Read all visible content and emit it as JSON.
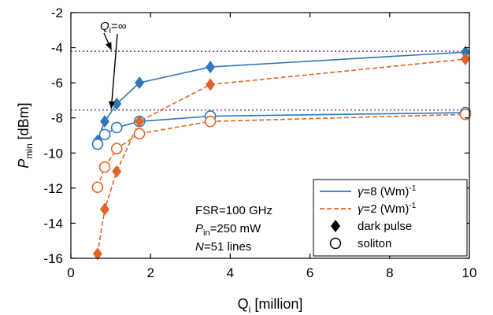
{
  "chart_data": {
    "type": "line",
    "xlabel": {
      "main": "Q",
      "sub": "i",
      "rest": " [million]"
    },
    "ylabel": {
      "main": "P",
      "sub": "min",
      "rest": " [dBm]"
    },
    "xlim": [
      0,
      10
    ],
    "ylim": [
      -16,
      -2
    ],
    "xticks": [
      0,
      2,
      4,
      6,
      8,
      10
    ],
    "yticks": [
      -16,
      -14,
      -12,
      -10,
      -8,
      -6,
      -4,
      -2
    ],
    "grid": false,
    "series": [
      {
        "id": "g8_dark",
        "style": "solid",
        "color": "#2E77B8",
        "marker": "diamond",
        "x": [
          0.67,
          0.85,
          1.15,
          1.72,
          3.5,
          9.9
        ],
        "y": [
          -9.3,
          -8.2,
          -7.2,
          -6.0,
          -5.1,
          -4.25
        ]
      },
      {
        "id": "g8_soliton",
        "style": "solid",
        "color": "#2E77B8",
        "marker": "circle",
        "x": [
          0.67,
          0.85,
          1.15,
          1.72,
          3.5,
          9.9
        ],
        "y": [
          -9.5,
          -8.95,
          -8.55,
          -8.2,
          -7.9,
          -7.7
        ]
      },
      {
        "id": "g2_dark",
        "style": "dashed",
        "color": "#E0642A",
        "marker": "diamond",
        "x": [
          0.67,
          0.85,
          1.15,
          1.72,
          3.5,
          9.9
        ],
        "y": [
          -15.75,
          -13.2,
          -11.05,
          -8.2,
          -6.1,
          -4.65
        ]
      },
      {
        "id": "g2_soliton",
        "style": "dashed",
        "color": "#E0642A",
        "marker": "circle",
        "x": [
          0.67,
          0.85,
          1.15,
          1.72,
          3.5,
          9.9
        ],
        "y": [
          -11.95,
          -10.8,
          -9.75,
          -8.9,
          -8.2,
          -7.8
        ]
      }
    ],
    "reference_lines": [
      {
        "y": -4.2,
        "color": "#8B3A9A",
        "style": "dotted"
      },
      {
        "y": -7.55,
        "color": "#8B3A9A",
        "style": "dotted"
      }
    ],
    "annotation": {
      "label_main": "Q",
      "label_sub": "i",
      "label_rest": "=∞",
      "arrow_targets": [
        [
          0.5,
          -4.2
        ],
        [
          0.5,
          -7.55
        ]
      ]
    },
    "notes": [
      {
        "main": "FSR=100 GHz"
      },
      {
        "main": "P",
        "sub": "in",
        "rest": "=250 mW"
      },
      {
        "main": "N",
        "rest": "=51 lines"
      }
    ],
    "legend": {
      "position": "bottom-right",
      "entries": [
        {
          "prefix": "γ=8 (Wm)",
          "sup": "-1",
          "kind": "line",
          "style": "solid",
          "color": "#2E77B8"
        },
        {
          "prefix": "γ=2 (Wm)",
          "sup": "-1",
          "kind": "line",
          "style": "dashed",
          "color": "#E0642A"
        },
        {
          "prefix": "dark pulse",
          "kind": "diamond",
          "color": "#000000"
        },
        {
          "prefix": "soliton",
          "kind": "circle",
          "color": "#000000"
        }
      ]
    }
  }
}
